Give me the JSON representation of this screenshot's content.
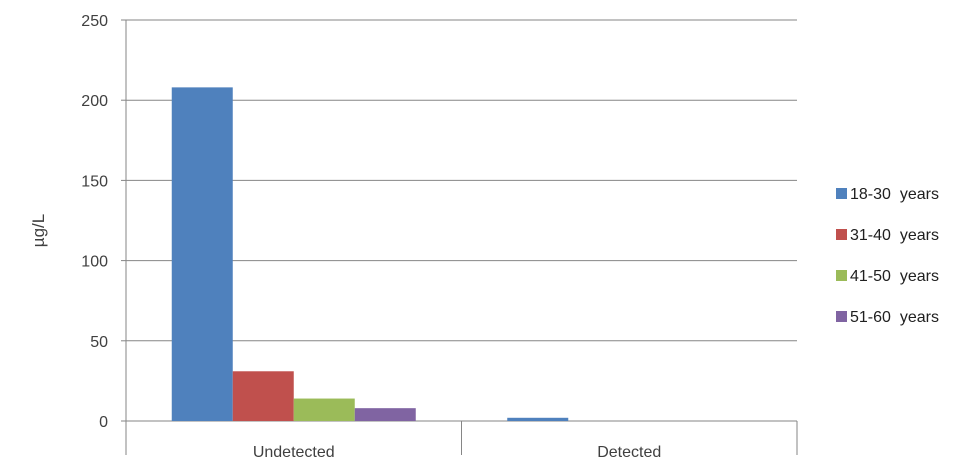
{
  "chart_data": {
    "type": "bar",
    "categories": [
      "Undetected",
      "Detected"
    ],
    "series": [
      {
        "name": "18-30  years",
        "values": [
          208,
          2
        ],
        "color": "#4F81BD"
      },
      {
        "name": "31-40  years",
        "values": [
          31,
          0
        ],
        "color": "#C0504D"
      },
      {
        "name": "41-50  years",
        "values": [
          14,
          0
        ],
        "color": "#9BBB59"
      },
      {
        "name": "51-60  years",
        "values": [
          8,
          0
        ],
        "color": "#8064A2"
      }
    ],
    "title": "",
    "xlabel": "",
    "ylabel": "µg/L",
    "ylim": [
      0,
      250
    ],
    "yticks": [
      "0",
      "50",
      "100",
      "150",
      "200",
      "250"
    ],
    "grid": true,
    "legend_position": "right"
  }
}
